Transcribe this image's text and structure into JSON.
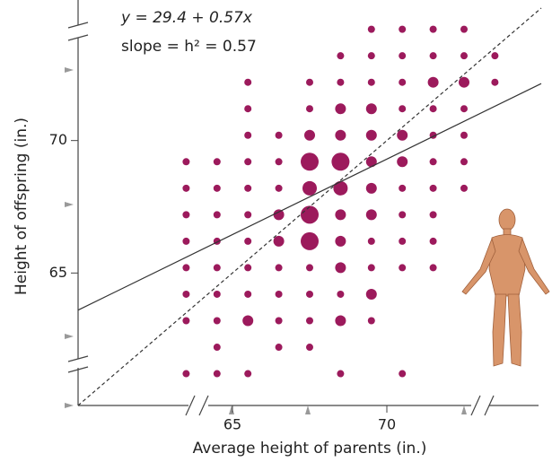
{
  "chart_data": {
    "type": "scatter",
    "annotations": [
      "y = 29.4 + 0.57x",
      "slope = h² = 0.57"
    ],
    "xlabel": "Average height of parents (in.)",
    "ylabel": "Height of offspring (in.)",
    "color": "#9c1a5c",
    "xlim": [
      60,
      75
    ],
    "ylim": [
      60,
      75
    ],
    "xticks": [
      65,
      70
    ],
    "yticks": [
      65,
      70
    ],
    "rows": [
      {
        "y": 74.2,
        "x": [
          69.5,
          70.5,
          71.5,
          72.5
        ],
        "sizes": [
          1,
          1,
          1,
          1
        ]
      },
      {
        "y": 73.2,
        "x": [
          68.5,
          69.5,
          70.5,
          71.5,
          72.5,
          73.5
        ],
        "sizes": [
          1,
          1,
          1,
          1,
          1,
          1
        ]
      },
      {
        "y": 72.2,
        "x": [
          65.5,
          67.5,
          68.5,
          69.5,
          70.5,
          71.5,
          72.5,
          73.5
        ],
        "sizes": [
          1,
          1,
          1,
          1,
          1,
          2,
          2,
          1
        ]
      },
      {
        "y": 71.2,
        "x": [
          65.5,
          67.5,
          68.5,
          69.5,
          70.5,
          71.5,
          72.5
        ],
        "sizes": [
          1,
          1,
          2,
          2,
          1,
          1,
          1
        ]
      },
      {
        "y": 70.2,
        "x": [
          65.5,
          66.5,
          67.5,
          68.5,
          69.5,
          70.5,
          71.5,
          72.5
        ],
        "sizes": [
          1,
          1,
          2,
          2,
          2,
          2,
          1,
          1
        ]
      },
      {
        "y": 69.2,
        "x": [
          63.5,
          64.5,
          65.5,
          66.5,
          67.5,
          68.5,
          69.5,
          70.5,
          71.5,
          72.5
        ],
        "sizes": [
          1,
          1,
          1,
          1,
          4,
          4,
          2,
          2,
          1,
          1
        ]
      },
      {
        "y": 68.2,
        "x": [
          63.5,
          64.5,
          65.5,
          66.5,
          67.5,
          68.5,
          69.5,
          70.5,
          71.5,
          72.5
        ],
        "sizes": [
          1,
          1,
          1,
          1,
          3,
          3,
          2,
          1,
          1,
          1
        ]
      },
      {
        "y": 67.2,
        "x": [
          63.5,
          64.5,
          65.5,
          66.5,
          67.5,
          68.5,
          69.5,
          70.5,
          71.5
        ],
        "sizes": [
          1,
          1,
          1,
          2,
          4,
          2,
          2,
          1,
          1
        ]
      },
      {
        "y": 66.2,
        "x": [
          63.5,
          64.5,
          65.5,
          66.5,
          67.5,
          68.5,
          69.5,
          70.5,
          71.5
        ],
        "sizes": [
          1,
          1,
          1,
          2,
          4,
          2,
          1,
          1,
          1
        ]
      },
      {
        "y": 65.2,
        "x": [
          63.5,
          64.5,
          65.5,
          66.5,
          67.5,
          68.5,
          69.5,
          70.5,
          71.5
        ],
        "sizes": [
          1,
          1,
          1,
          1,
          1,
          2,
          1,
          1,
          1
        ]
      },
      {
        "y": 64.2,
        "x": [
          63.5,
          64.5,
          65.5,
          66.5,
          67.5,
          68.5,
          69.5
        ],
        "sizes": [
          1,
          1,
          1,
          1,
          1,
          1,
          2
        ]
      },
      {
        "y": 63.2,
        "x": [
          63.5,
          64.5,
          65.5,
          66.5,
          67.5,
          68.5,
          69.5
        ],
        "sizes": [
          1,
          1,
          2,
          1,
          1,
          2,
          1
        ]
      },
      {
        "y": 62.2,
        "x": [
          64.5,
          66.5,
          67.5
        ],
        "sizes": [
          1,
          1,
          1
        ]
      },
      {
        "y": 61.2,
        "x": [
          63.5,
          64.5,
          65.5,
          68.5,
          70.5
        ],
        "sizes": [
          1,
          1,
          1,
          1,
          1
        ]
      }
    ],
    "lines": [
      {
        "x": [
          60,
          75
        ],
        "y": [
          63.6,
          72.15
        ],
        "dashed": false
      },
      {
        "x": [
          60,
          75
        ],
        "y": [
          60,
          75
        ],
        "dashed": true
      }
    ]
  }
}
